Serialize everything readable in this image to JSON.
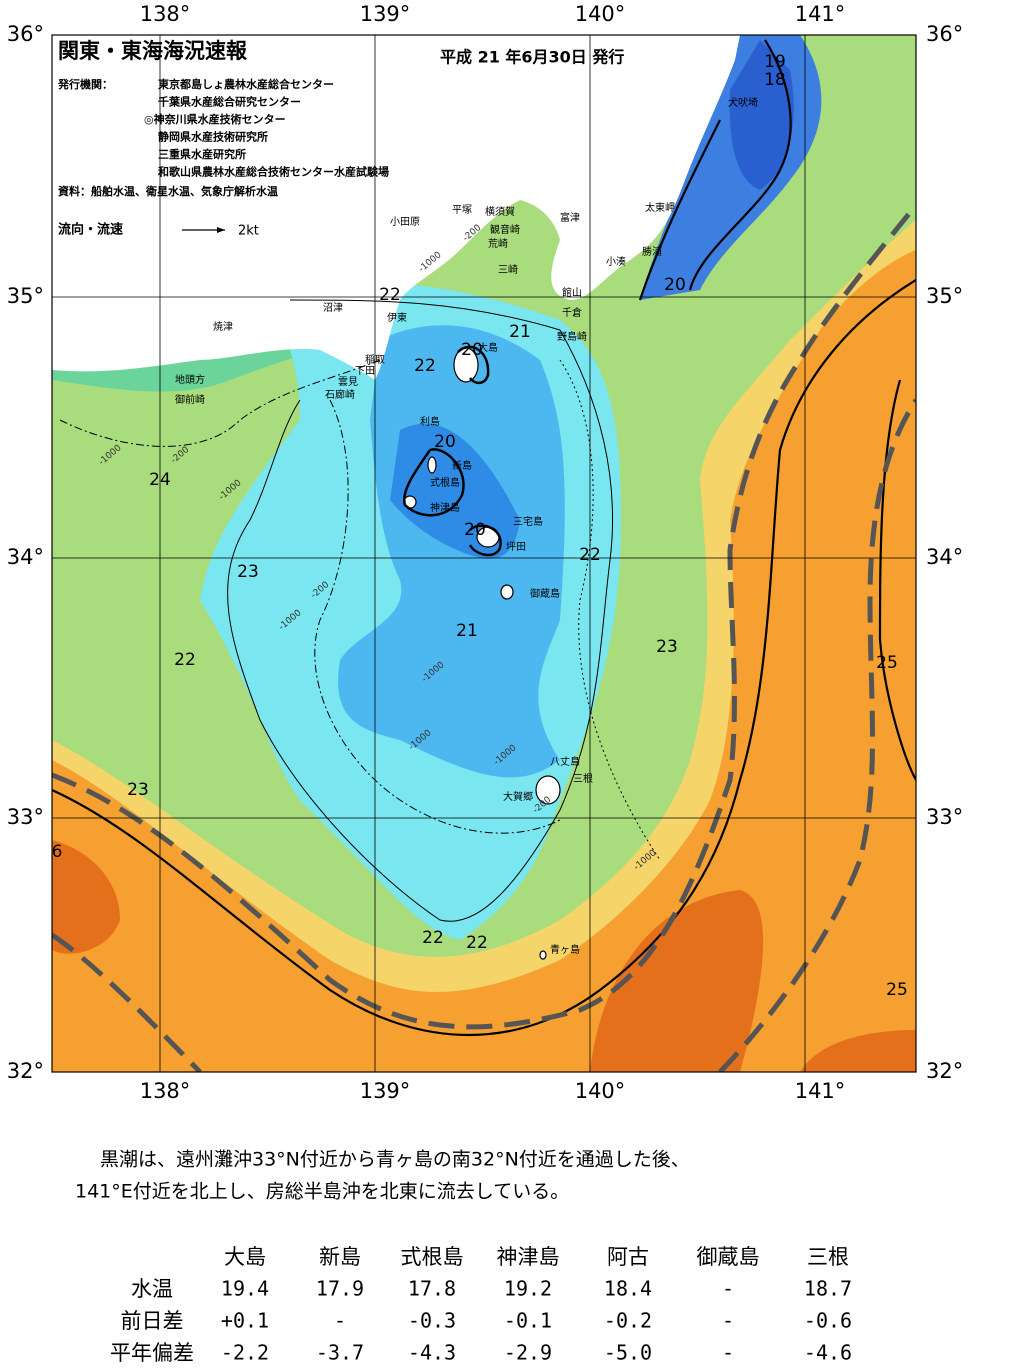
{
  "header": {
    "title": "関東・東海海況速報",
    "date": "平成 21 年6月30日 発行",
    "issuer_label": "発行機関：",
    "issuers": [
      "東京都島しょ農林水産総合センター",
      "千葉県水産総合研究センター",
      "◎神奈川県水産技術センター",
      "静岡県水産技術研究所",
      "三重県水産研究所",
      "和歌山県農林水産総合技術センター水産試験場"
    ],
    "source": "資料：船舶水温、衛星水温、気象庁解析水温",
    "legend_label": "流向・流速",
    "legend_scale": "2kt"
  },
  "axes": {
    "lon_top": [
      "138°",
      "139°",
      "140°",
      "141°"
    ],
    "lon_bottom": [
      "138°",
      "139°",
      "140°",
      "141°"
    ],
    "lat_left": [
      "36°",
      "35°",
      "34°",
      "33°",
      "32°"
    ],
    "lat_right": [
      "36°",
      "35°",
      "34°",
      "33°",
      "32°"
    ]
  },
  "places": [
    "小田原",
    "平塚",
    "横須賀",
    "観音崎",
    "荒崎",
    "富津",
    "太東岬",
    "勝浦",
    "小湊",
    "三崎",
    "館山",
    "千倉",
    "野島崎",
    "沼津",
    "伊東",
    "焼津",
    "稲取",
    "下田",
    "雲見",
    "石廊崎",
    "地頭方",
    "御前崎",
    "大島",
    "利島",
    "新島",
    "式根島",
    "神津島",
    "三宅島",
    "坪田",
    "御蔵島",
    "八丈島",
    "三根",
    "大賀郷",
    "青ヶ島",
    "犬吠埼"
  ],
  "contour_labels": [
    "19",
    "18",
    "20",
    "22",
    "21",
    "22",
    "20",
    "20",
    "24",
    "20",
    "22",
    "23",
    "21",
    "22",
    "23",
    "25",
    "23",
    "6",
    "22",
    "22",
    "25"
  ],
  "depth_labels": [
    "-1000",
    "-200",
    "-1000",
    "-200",
    "-1000",
    "-200",
    "-1000",
    "-1000",
    "-1000",
    "-1000",
    "-1000",
    "-200"
  ],
  "summary": [
    "黒潮は、遠州灘沖33°N付近から青ヶ島の南32°N付近を通過した後、",
    "141°E付近を北上し、房総半島沖を北東に流去している。"
  ],
  "table": {
    "columns": [
      "大島",
      "新島",
      "式根島",
      "神津島",
      "阿古",
      "御蔵島",
      "三根"
    ],
    "rows": [
      {
        "label": "水温",
        "values": [
          "19.4",
          "17.9",
          "17.8",
          "19.2",
          "18.4",
          "-",
          "18.7"
        ]
      },
      {
        "label": "前日差",
        "values": [
          "+0.1",
          "-",
          "-0.3",
          "-0.1",
          "-0.2",
          "-",
          "-0.6"
        ]
      },
      {
        "label": "平年偏差",
        "values": [
          "-2.2",
          "-3.7",
          "-4.3",
          "-2.9",
          "-5.0",
          "-",
          "-4.6"
        ]
      }
    ]
  }
}
